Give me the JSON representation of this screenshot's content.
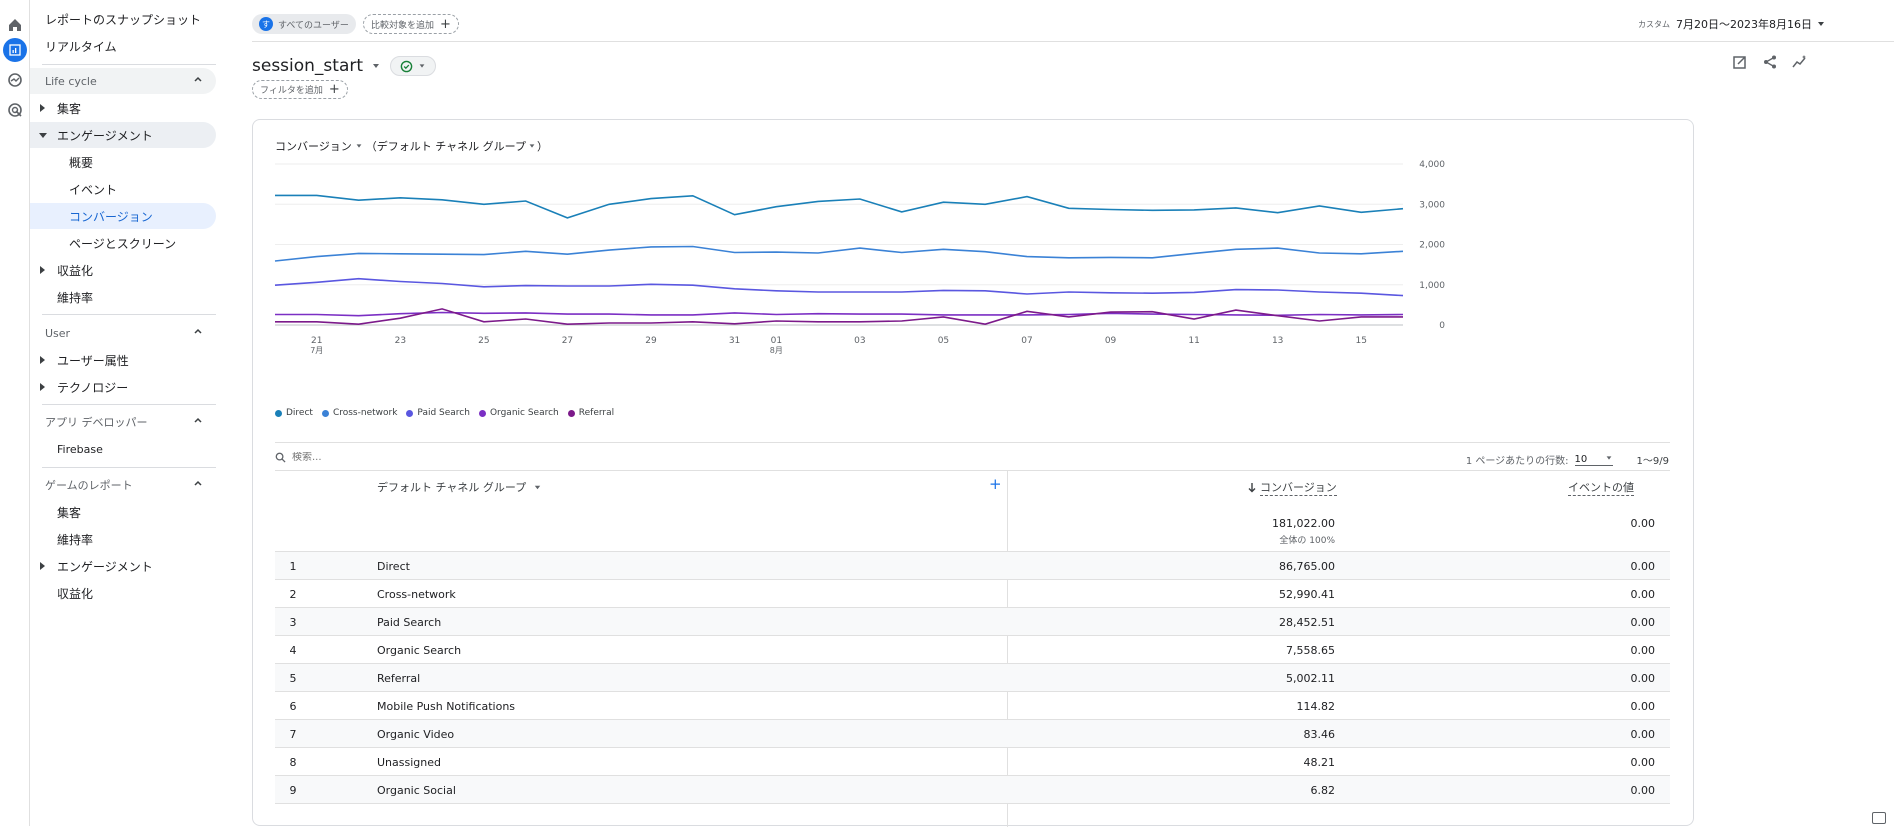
{
  "rail": {
    "icons": [
      "home-icon",
      "reports-icon",
      "explore-icon",
      "advertising-icon"
    ]
  },
  "sidebar": {
    "snapshot": "レポートのスナップショット",
    "realtime": "リアルタイム",
    "lifecycle": {
      "title": "Life cycle",
      "acquisition": "集客",
      "engagement": "エンゲージメント",
      "engagement_children": [
        "概要",
        "イベント",
        "コンバージョン",
        "ページとスクリーン"
      ],
      "monetization": "収益化",
      "retention": "維持率"
    },
    "user": {
      "title": "User",
      "attributes": "ユーザー属性",
      "tech": "テクノロジー"
    },
    "appdev": {
      "title": "アプリ デベロッパー",
      "firebase": "Firebase"
    },
    "games": {
      "title": "ゲームのレポート",
      "items": [
        "集客",
        "維持率",
        "エンゲージメント",
        "収益化"
      ]
    }
  },
  "header": {
    "segment_chip": "すべてのユーザー",
    "segment_avatar": "す",
    "compare_chip": "比較対象を追加",
    "date_label": "カスタム",
    "date_range": "7月20日～2023年8月16日",
    "title": "session_start",
    "filter_chip": "フィルタを追加"
  },
  "card": {
    "dimension_title": "コンバージョン",
    "dimension_group": "（デフォルト チャネル グループ",
    "search_placeholder": "検索...",
    "rows_per_page_label": "1 ページあたりの行数:",
    "rows_per_page": "10",
    "pagination": "1～9/9",
    "col_dimension": "デフォルト チャネル グループ",
    "col_conversions": "コンバージョン",
    "col_event_value": "イベントの値",
    "total_conversions": "181,022.00",
    "total_pct": "全体の 100%",
    "total_event_value": "0.00",
    "rows": [
      {
        "rank": "1",
        "name": "Direct",
        "conv": "86,765.00",
        "value": "0.00"
      },
      {
        "rank": "2",
        "name": "Cross-network",
        "conv": "52,990.41",
        "value": "0.00"
      },
      {
        "rank": "3",
        "name": "Paid Search",
        "conv": "28,452.51",
        "value": "0.00"
      },
      {
        "rank": "4",
        "name": "Organic Search",
        "conv": "7,558.65",
        "value": "0.00"
      },
      {
        "rank": "5",
        "name": "Referral",
        "conv": "5,002.11",
        "value": "0.00"
      },
      {
        "rank": "6",
        "name": "Mobile Push Notifications",
        "conv": "114.82",
        "value": "0.00"
      },
      {
        "rank": "7",
        "name": "Organic Video",
        "conv": "83.46",
        "value": "0.00"
      },
      {
        "rank": "8",
        "name": "Unassigned",
        "conv": "48.21",
        "value": "0.00"
      },
      {
        "rank": "9",
        "name": "Organic Social",
        "conv": "6.82",
        "value": "0.00"
      }
    ]
  },
  "chart_data": {
    "type": "line",
    "x_tick_labels": [
      "21",
      "23",
      "25",
      "27",
      "29",
      "31",
      "01",
      "03",
      "05",
      "07",
      "09",
      "11",
      "13",
      "15"
    ],
    "x_sub_labels": {
      "21": "7月",
      "01": "8月"
    },
    "x": [
      "07-20",
      "07-21",
      "07-22",
      "07-23",
      "07-24",
      "07-25",
      "07-26",
      "07-27",
      "07-28",
      "07-29",
      "07-30",
      "07-31",
      "08-01",
      "08-02",
      "08-03",
      "08-04",
      "08-05",
      "08-06",
      "08-07",
      "08-08",
      "08-09",
      "08-10",
      "08-11",
      "08-12",
      "08-13",
      "08-14",
      "08-15",
      "08-16"
    ],
    "y_ticks": [
      0,
      1000,
      2000,
      3000,
      4000
    ],
    "y_tick_labels": [
      "0",
      "1,000",
      "2,000",
      "3,000",
      "4,000"
    ],
    "ylim": [
      0,
      4000
    ],
    "grid": true,
    "legend_position": "bottom-left",
    "series": [
      {
        "name": "Direct",
        "color": "#1a80b8",
        "values": [
          3220,
          3220,
          3100,
          3160,
          3110,
          3000,
          3080,
          2660,
          3000,
          3140,
          3210,
          2740,
          2940,
          3070,
          3130,
          2810,
          3050,
          3000,
          3190,
          2900,
          2870,
          2850,
          2860,
          2910,
          2790,
          2960,
          2800,
          2890
        ]
      },
      {
        "name": "Cross-network",
        "color": "#3b82d6",
        "values": [
          1590,
          1700,
          1780,
          1770,
          1760,
          1750,
          1830,
          1760,
          1860,
          1940,
          1950,
          1800,
          1810,
          1790,
          1910,
          1800,
          1880,
          1820,
          1700,
          1670,
          1680,
          1670,
          1780,
          1880,
          1910,
          1790,
          1770,
          1830
        ]
      },
      {
        "name": "Paid Search",
        "color": "#5a57e0",
        "values": [
          990,
          1060,
          1150,
          1080,
          1030,
          950,
          980,
          970,
          970,
          1010,
          990,
          900,
          850,
          820,
          820,
          820,
          860,
          850,
          770,
          820,
          800,
          790,
          810,
          880,
          870,
          820,
          790,
          730
        ]
      },
      {
        "name": "Organic Search",
        "color": "#7b2fc4",
        "values": [
          260,
          260,
          230,
          280,
          310,
          290,
          300,
          270,
          270,
          250,
          250,
          300,
          260,
          280,
          270,
          270,
          250,
          250,
          250,
          260,
          290,
          270,
          260,
          250,
          240,
          260,
          250,
          260
        ]
      },
      {
        "name": "Referral",
        "color": "#7c1a8a",
        "values": [
          80,
          80,
          20,
          170,
          400,
          80,
          150,
          20,
          50,
          50,
          80,
          30,
          100,
          80,
          80,
          100,
          200,
          20,
          340,
          200,
          320,
          330,
          150,
          370,
          230,
          100,
          200,
          200
        ]
      }
    ]
  }
}
